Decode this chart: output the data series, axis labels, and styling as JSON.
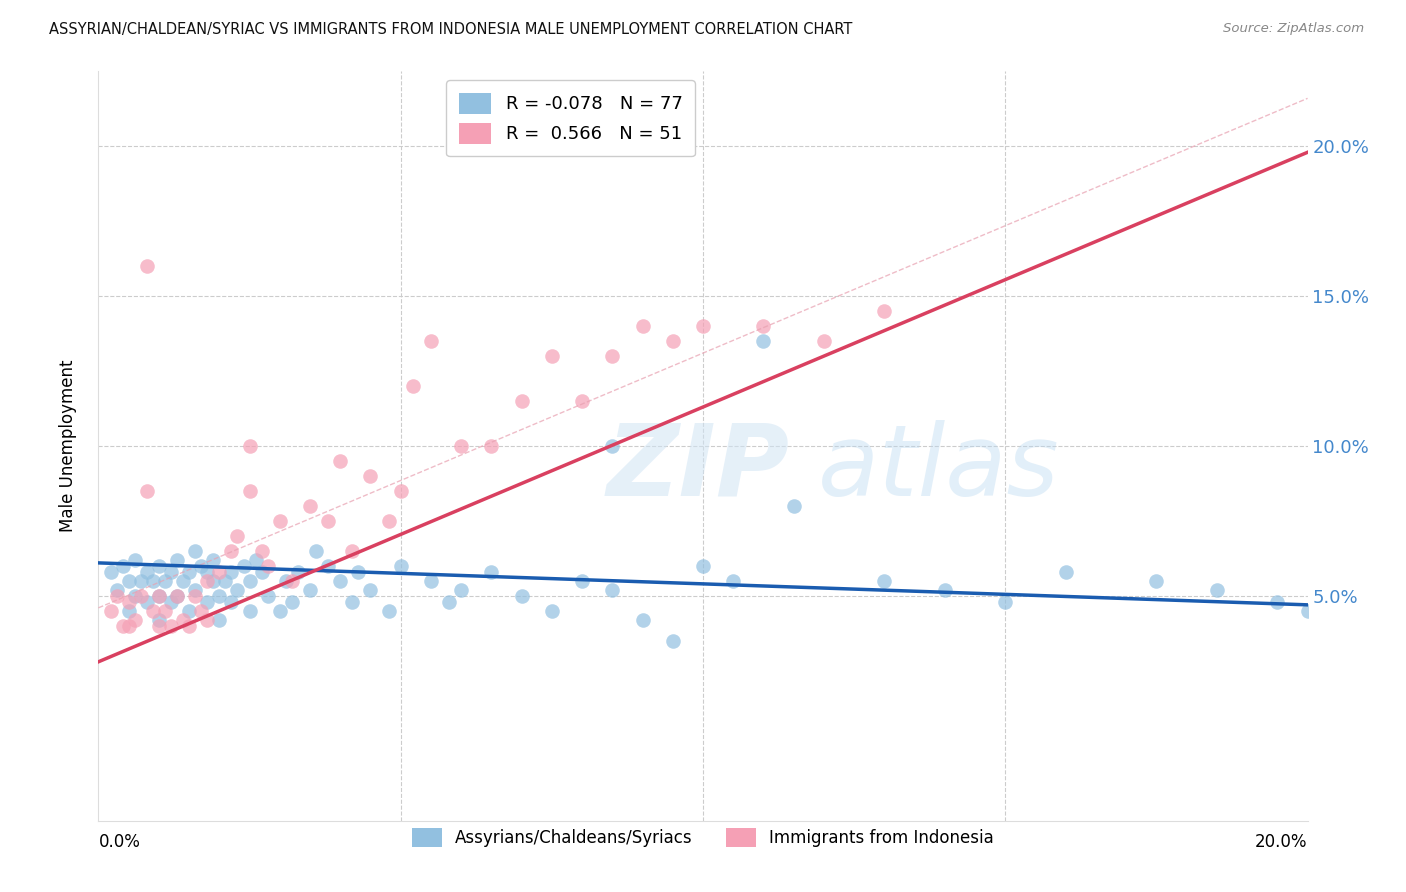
{
  "title": "ASSYRIAN/CHALDEAN/SYRIAC VS IMMIGRANTS FROM INDONESIA MALE UNEMPLOYMENT CORRELATION CHART",
  "source": "Source: ZipAtlas.com",
  "ylabel": "Male Unemployment",
  "xlim": [
    0.0,
    0.2
  ],
  "ylim": [
    -0.025,
    0.225
  ],
  "y_ticks": [
    0.05,
    0.1,
    0.15,
    0.2
  ],
  "y_tick_labels": [
    "5.0%",
    "10.0%",
    "15.0%",
    "20.0%"
  ],
  "scatter1_color": "#92c0e0",
  "scatter2_color": "#f5a0b5",
  "line1_color": "#1a5cb0",
  "line2_color": "#d94060",
  "dash_color": "#e8a0b0",
  "background_color": "#ffffff",
  "grid_color": "#cccccc",
  "tick_label_color": "#4488cc",
  "legend_label1": "Assyrians/Chaldeans/Syriacs",
  "legend_label2": "Immigrants from Indonesia",
  "legend1_r": "-0.078",
  "legend1_n": "77",
  "legend2_r": "0.566",
  "legend2_n": "51",
  "blue_scatter_x": [
    0.002,
    0.003,
    0.004,
    0.005,
    0.005,
    0.006,
    0.006,
    0.007,
    0.008,
    0.008,
    0.009,
    0.01,
    0.01,
    0.01,
    0.011,
    0.012,
    0.012,
    0.013,
    0.013,
    0.014,
    0.015,
    0.015,
    0.016,
    0.016,
    0.017,
    0.018,
    0.018,
    0.019,
    0.019,
    0.02,
    0.02,
    0.021,
    0.022,
    0.022,
    0.023,
    0.024,
    0.025,
    0.025,
    0.026,
    0.027,
    0.028,
    0.03,
    0.031,
    0.032,
    0.033,
    0.035,
    0.036,
    0.038,
    0.04,
    0.042,
    0.043,
    0.045,
    0.048,
    0.05,
    0.055,
    0.058,
    0.06,
    0.065,
    0.07,
    0.075,
    0.08,
    0.085,
    0.09,
    0.095,
    0.1,
    0.105,
    0.11,
    0.115,
    0.13,
    0.14,
    0.15,
    0.16,
    0.175,
    0.185,
    0.195,
    0.2,
    0.085
  ],
  "blue_scatter_y": [
    0.058,
    0.052,
    0.06,
    0.045,
    0.055,
    0.05,
    0.062,
    0.055,
    0.048,
    0.058,
    0.055,
    0.05,
    0.042,
    0.06,
    0.055,
    0.048,
    0.058,
    0.05,
    0.062,
    0.055,
    0.045,
    0.058,
    0.052,
    0.065,
    0.06,
    0.048,
    0.058,
    0.055,
    0.062,
    0.05,
    0.042,
    0.055,
    0.048,
    0.058,
    0.052,
    0.06,
    0.055,
    0.045,
    0.062,
    0.058,
    0.05,
    0.045,
    0.055,
    0.048,
    0.058,
    0.052,
    0.065,
    0.06,
    0.055,
    0.048,
    0.058,
    0.052,
    0.045,
    0.06,
    0.055,
    0.048,
    0.052,
    0.058,
    0.05,
    0.045,
    0.055,
    0.052,
    0.042,
    0.035,
    0.06,
    0.055,
    0.135,
    0.08,
    0.055,
    0.052,
    0.048,
    0.058,
    0.055,
    0.052,
    0.048,
    0.045,
    0.1
  ],
  "pink_scatter_x": [
    0.002,
    0.003,
    0.004,
    0.005,
    0.006,
    0.007,
    0.008,
    0.009,
    0.01,
    0.01,
    0.011,
    0.012,
    0.013,
    0.014,
    0.015,
    0.016,
    0.017,
    0.018,
    0.018,
    0.02,
    0.022,
    0.023,
    0.025,
    0.027,
    0.028,
    0.03,
    0.032,
    0.035,
    0.038,
    0.04,
    0.042,
    0.045,
    0.048,
    0.05,
    0.052,
    0.055,
    0.06,
    0.065,
    0.07,
    0.075,
    0.08,
    0.085,
    0.09,
    0.095,
    0.1,
    0.11,
    0.12,
    0.13,
    0.005,
    0.008,
    0.025
  ],
  "pink_scatter_y": [
    0.045,
    0.05,
    0.04,
    0.048,
    0.042,
    0.05,
    0.16,
    0.045,
    0.04,
    0.05,
    0.045,
    0.04,
    0.05,
    0.042,
    0.04,
    0.05,
    0.045,
    0.042,
    0.055,
    0.058,
    0.065,
    0.07,
    0.085,
    0.065,
    0.06,
    0.075,
    0.055,
    0.08,
    0.075,
    0.095,
    0.065,
    0.09,
    0.075,
    0.085,
    0.12,
    0.135,
    0.1,
    0.1,
    0.115,
    0.13,
    0.115,
    0.13,
    0.14,
    0.135,
    0.14,
    0.14,
    0.135,
    0.145,
    0.04,
    0.085,
    0.1
  ],
  "line1_x": [
    0.0,
    0.2
  ],
  "line1_y": [
    0.061,
    0.047
  ],
  "line2_x": [
    0.0,
    0.2
  ],
  "line2_y": [
    0.028,
    0.198
  ]
}
